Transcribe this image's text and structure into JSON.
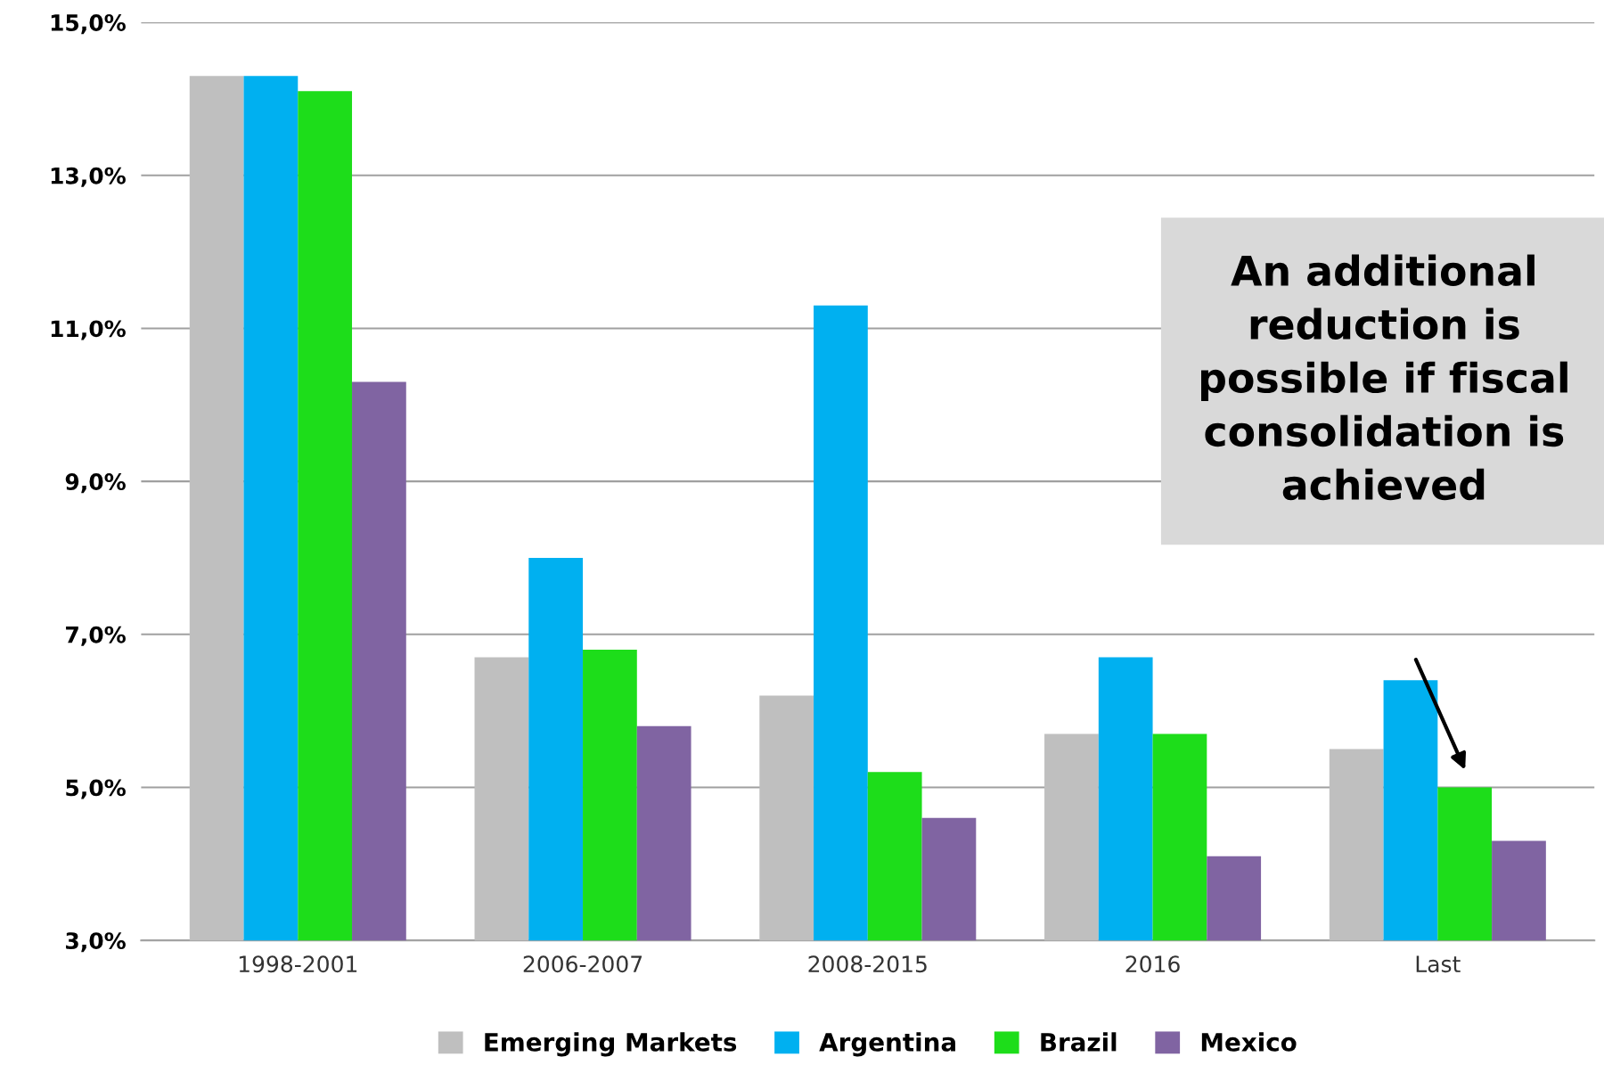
{
  "chart_data": {
    "type": "bar",
    "categories": [
      "1998-2001",
      "2006-2007",
      "2008-2015",
      "2016",
      "Last"
    ],
    "series": [
      {
        "name": "Emerging Markets",
        "color": "#bfbfbf",
        "values": [
          14.3,
          6.7,
          6.2,
          5.7,
          5.5
        ]
      },
      {
        "name": "Argentina",
        "color": "#00b0f0",
        "values": [
          14.3,
          8.0,
          11.3,
          6.7,
          6.4
        ]
      },
      {
        "name": "Brazil",
        "color": "#1ddd1a",
        "values": [
          14.1,
          6.8,
          5.2,
          5.7,
          5.0
        ]
      },
      {
        "name": "Mexico",
        "color": "#8064a2",
        "values": [
          10.3,
          5.8,
          4.6,
          4.1,
          4.3
        ]
      }
    ],
    "ylim": [
      3,
      15
    ],
    "yticks": [
      {
        "value": 3,
        "label": "3,0%"
      },
      {
        "value": 5,
        "label": "5,0%"
      },
      {
        "value": 7,
        "label": "7,0%"
      },
      {
        "value": 9,
        "label": "9,0%"
      },
      {
        "value": 11,
        "label": "11,0%"
      },
      {
        "value": 13,
        "label": "13,0%"
      },
      {
        "value": 15,
        "label": "15,0%"
      }
    ],
    "grid": "y",
    "legend": "bottom",
    "annotations": [
      "An additional reduction is possible if fiscal consolidation is achieved"
    ]
  }
}
